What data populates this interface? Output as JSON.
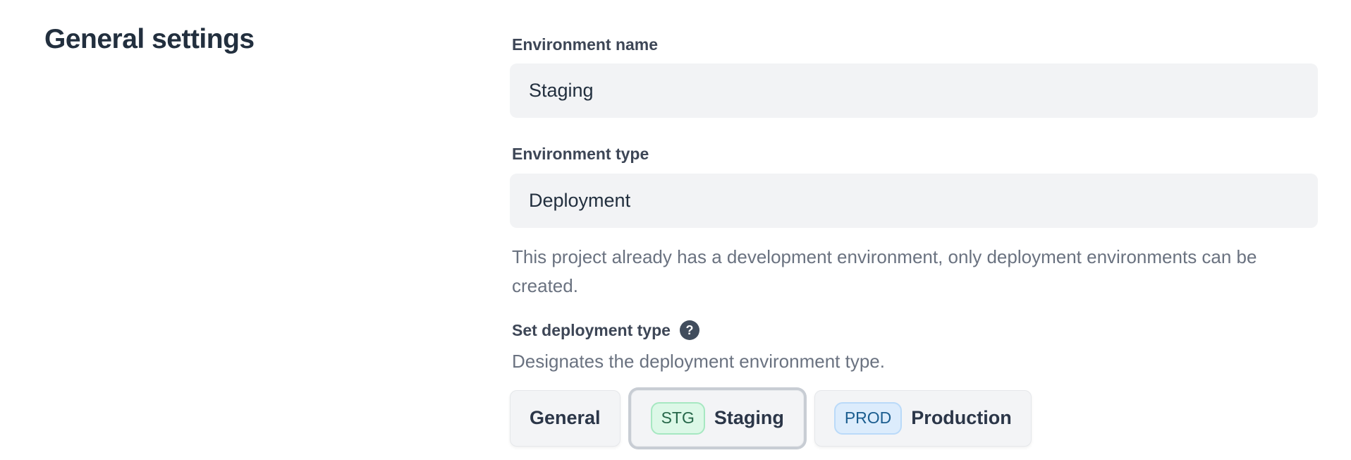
{
  "page": {
    "heading": "General settings"
  },
  "form": {
    "environment_name": {
      "label": "Environment name",
      "value": "Staging"
    },
    "environment_type": {
      "label": "Environment type",
      "value": "Deployment",
      "help": "This project already has a development environment, only deployment environments can be created."
    },
    "deployment_type": {
      "label": "Set deployment type",
      "help_icon_glyph": "?",
      "description": "Designates the deployment environment type.",
      "options": [
        {
          "label": "General",
          "badge": "",
          "selected": false
        },
        {
          "label": "Staging",
          "badge": "STG",
          "selected": true
        },
        {
          "label": "Production",
          "badge": "PROD",
          "selected": false
        }
      ]
    }
  },
  "colors": {
    "heading_text": "#222f3e",
    "label_text": "#3d4656",
    "body_text": "#6a7280",
    "input_bg": "#f2f3f5",
    "button_bg": "#f3f4f6",
    "button_border": "#e5e7ea",
    "selected_ring": "#c8cdd4",
    "stg_badge_bg": "#dcf8e7",
    "stg_badge_border": "#a6e8c1",
    "stg_badge_text": "#266749",
    "prod_badge_bg": "#dcecfc",
    "prod_badge_border": "#badaf9",
    "prod_badge_text": "#1b5d8f",
    "help_icon_bg": "#414d5d"
  }
}
